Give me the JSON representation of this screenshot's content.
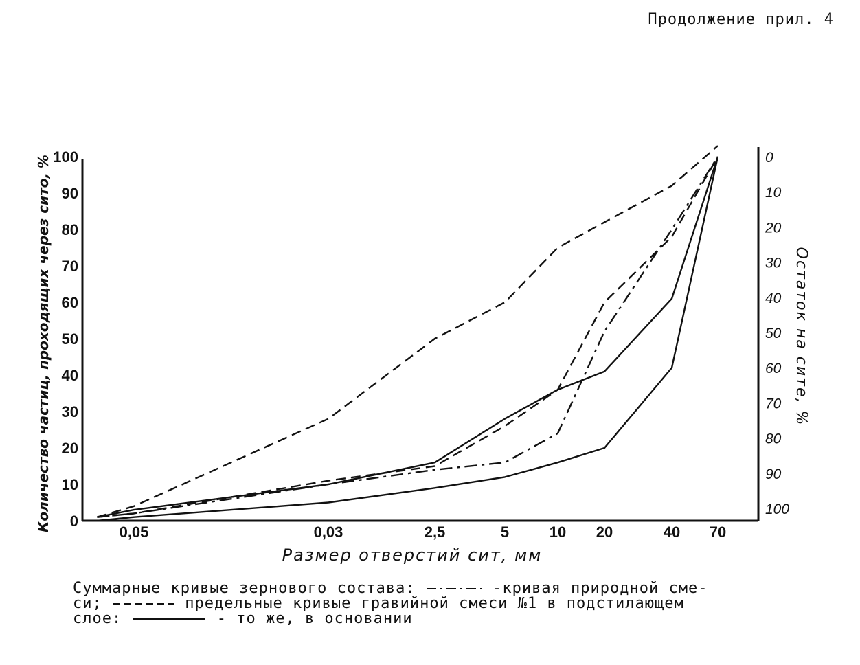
{
  "header": {
    "text": "Продолжение прил. 4"
  },
  "chart_data": {
    "type": "line",
    "x_tick_labels": [
      "0,05",
      "0,03",
      "2,5",
      "5",
      "10",
      "20",
      "40",
      "70"
    ],
    "x_tick_positions_index": [
      0,
      1,
      2,
      3,
      4,
      5,
      6,
      7
    ],
    "xlabel": "Размер отверстий сит, мм",
    "ylabel_left": "Количество частиц, проходящих через сито, %",
    "ylabel_right": "Остаток на сите, %",
    "y_left_ticks": [
      "0",
      "10",
      "20",
      "30",
      "40",
      "50",
      "60",
      "70",
      "80",
      "90",
      "100"
    ],
    "y_right_ticks": [
      "0",
      "10",
      "20",
      "30",
      "40",
      "50",
      "60",
      "70",
      "80",
      "90",
      "100"
    ],
    "ylim": [
      0,
      100
    ],
    "series": [
      {
        "style": "dash-dot",
        "points": [
          [
            -0.8,
            1
          ],
          [
            0,
            2
          ],
          [
            1,
            10
          ],
          [
            2,
            14
          ],
          [
            3,
            16
          ],
          [
            4,
            24
          ],
          [
            5,
            52
          ],
          [
            6,
            80
          ],
          [
            7,
            100
          ]
        ]
      },
      {
        "style": "dashed",
        "points": [
          [
            -0.8,
            1
          ],
          [
            0,
            4
          ],
          [
            1,
            28
          ],
          [
            2,
            50
          ],
          [
            3,
            60
          ],
          [
            4,
            75
          ],
          [
            5,
            82
          ],
          [
            6,
            92
          ],
          [
            7,
            103
          ]
        ]
      },
      {
        "style": "dashed",
        "points": [
          [
            -0.8,
            1
          ],
          [
            0,
            2
          ],
          [
            1,
            11
          ],
          [
            2,
            15
          ],
          [
            3,
            26
          ],
          [
            4,
            36
          ],
          [
            5,
            60
          ],
          [
            6,
            78
          ],
          [
            7,
            100
          ]
        ]
      },
      {
        "style": "solid",
        "points": [
          [
            -0.8,
            1
          ],
          [
            0,
            3
          ],
          [
            1,
            10
          ],
          [
            2,
            16
          ],
          [
            3,
            28
          ],
          [
            4,
            36
          ],
          [
            5,
            41
          ],
          [
            6,
            61
          ],
          [
            7,
            100
          ]
        ]
      },
      {
        "style": "solid",
        "points": [
          [
            -0.8,
            0
          ],
          [
            0,
            1
          ],
          [
            1,
            5
          ],
          [
            2,
            9
          ],
          [
            3,
            12
          ],
          [
            4,
            16
          ],
          [
            5,
            20
          ],
          [
            6,
            42
          ],
          [
            7,
            100
          ]
        ]
      }
    ]
  },
  "caption": {
    "line1_a": "Суммарные кривые зернового состава:",
    "line1_b": "-кривая природной сме-",
    "line2_a": "си;",
    "line2_b": "предельные кривые гравийной смеси №1 в подстилающем",
    "line3_a": "слое:",
    "line3_b": "- то же, в основании"
  }
}
